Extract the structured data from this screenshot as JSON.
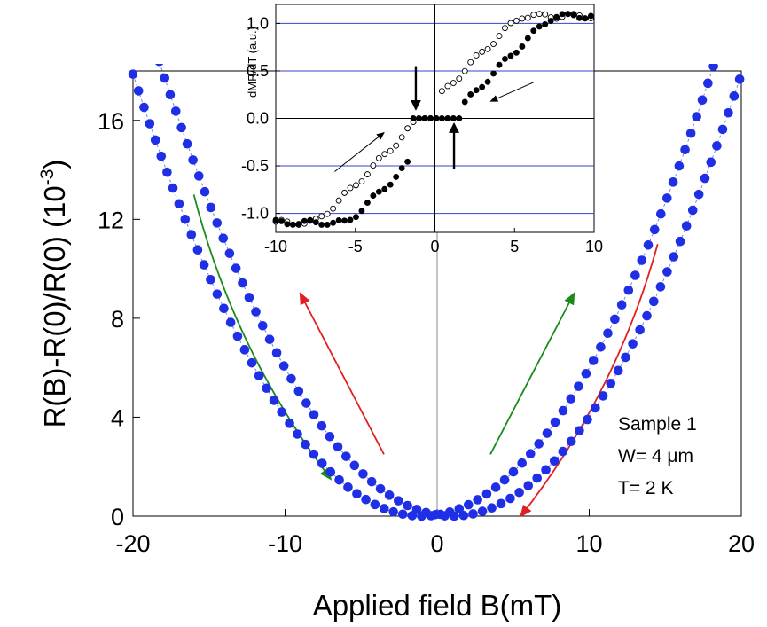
{
  "chart_data": [
    {
      "type": "scatter",
      "xlabel": "Applied field B(mT)",
      "ylabel": "R(B)-R(0)/R(0) (10",
      "ylabel_exponent": "-3",
      "ylabel_close": ")",
      "xlim": [
        -20,
        20
      ],
      "ylim": [
        0,
        18
      ],
      "xticks": [
        -20,
        -10,
        0,
        10,
        20
      ],
      "yticks": [
        0,
        4,
        8,
        12,
        16
      ],
      "xtick_labels": [
        "-20",
        "-10",
        "0",
        "10",
        "20"
      ],
      "ytick_labels": [
        "0",
        "4",
        "8",
        "12",
        "16"
      ],
      "grid": false,
      "marker_color": "#1f2fe6",
      "series": [
        {
          "shift_mT": 1.0,
          "coef_per_mT2": 0.0495,
          "x_range": [
            -20,
            20
          ]
        },
        {
          "shift_mT": -1.0,
          "coef_per_mT2": 0.0495,
          "x_range": [
            -20,
            20
          ]
        }
      ],
      "annotations": [
        "Sample 1",
        "W= 4 μm",
        "T= 2 K"
      ],
      "arrows": [
        {
          "color": "#1a8a1a",
          "direction": "down",
          "from": [
            -16,
            13
          ],
          "to": [
            -7,
            1.5
          ]
        },
        {
          "color": "#e02020",
          "direction": "up",
          "from": [
            -3.5,
            2.5
          ],
          "to": [
            -9,
            9
          ]
        },
        {
          "color": "#1a8a1a",
          "direction": "up",
          "from": [
            3.5,
            2.5
          ],
          "to": [
            9,
            9
          ]
        },
        {
          "color": "#e02020",
          "direction": "down",
          "from": [
            14.5,
            11
          ],
          "to": [
            5.5,
            0
          ]
        }
      ]
    },
    {
      "type": "scatter",
      "ylabel": "dMR/dT (a.u.)",
      "xlim": [
        -10,
        10
      ],
      "ylim": [
        -1.2,
        1.2
      ],
      "xticks": [
        -10,
        -5,
        0,
        5,
        10
      ],
      "yticks": [
        -1.0,
        -0.5,
        0.0,
        0.5,
        1.0
      ],
      "xtick_labels": [
        "-10",
        "-5",
        "0",
        "5",
        "10"
      ],
      "ytick_labels": [
        "-1.0",
        "-0.5",
        "0.0",
        "0.5",
        "1.0"
      ],
      "hlines": [
        -1.0,
        -0.5,
        0.5,
        1.0
      ],
      "hline_color": "#3344cc",
      "zero_lines": true,
      "series": [
        {
          "marker": "open",
          "shift_mT": -1.0,
          "x_range": [
            -10,
            10
          ]
        },
        {
          "marker": "filled",
          "shift_mT": 1.0,
          "x_range": [
            -10,
            10
          ]
        }
      ],
      "black_arrows": [
        {
          "direction": "down",
          "x": -1.2,
          "from_y": 0.55,
          "to_y": 0.1
        },
        {
          "direction": "up",
          "x": 1.2,
          "from_y": -0.53,
          "to_y": -0.06
        }
      ],
      "thin_arrows": [
        {
          "direction": "up",
          "from": [
            -6.3,
            -0.56
          ],
          "to": [
            -3.2,
            -0.15
          ]
        },
        {
          "direction": "down",
          "from": [
            6.2,
            0.38
          ],
          "to": [
            3.5,
            0.18
          ]
        }
      ]
    }
  ]
}
